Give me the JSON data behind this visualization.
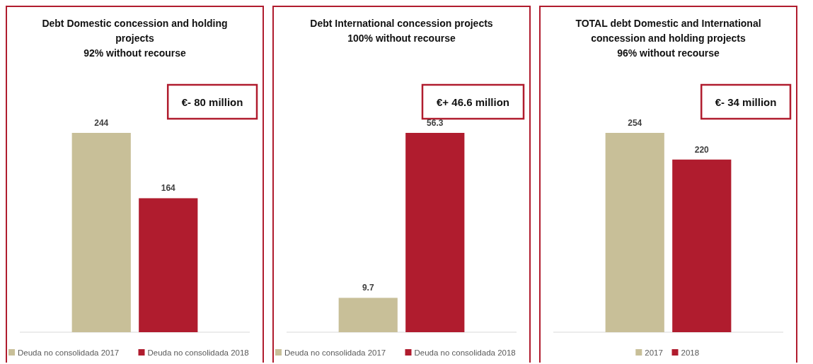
{
  "chart_data": [
    {
      "type": "bar",
      "title": "Debt Domestic concession and holding projects",
      "subtitle": "92% without recourse",
      "categories": [
        null
      ],
      "series": [
        {
          "name": "Deuda no consolidada 2017",
          "color": "#c8bf98",
          "values": [
            244
          ]
        },
        {
          "name": "Deuda no consolidada 2018",
          "color": "#b01c2e",
          "values": [
            164
          ]
        }
      ],
      "data_labels": true,
      "legend": "bottom",
      "annotations": [
        "€- 80 million"
      ]
    },
    {
      "type": "bar",
      "title": "Debt International concession projects",
      "subtitle": "100% without recourse",
      "categories": [
        null
      ],
      "series": [
        {
          "name": "Deuda no consolidada 2017",
          "color": "#c8bf98",
          "values": [
            9.7
          ]
        },
        {
          "name": "Deuda no consolidada 2018",
          "color": "#b01c2e",
          "values": [
            56.3
          ]
        }
      ],
      "data_labels": true,
      "legend": "bottom",
      "annotations": [
        "€+ 46.6 million"
      ]
    },
    {
      "type": "bar",
      "title": "TOTAL debt Domestic and International concession and holding projects",
      "subtitle": "96% without recourse",
      "categories": [
        null
      ],
      "series": [
        {
          "name": "2017",
          "color": "#c8bf98",
          "values": [
            254
          ]
        },
        {
          "name": "2018",
          "color": "#b01c2e",
          "values": [
            220
          ]
        }
      ],
      "data_labels": true,
      "legend": "bottom",
      "annotations": [
        "€- 34 million"
      ]
    }
  ]
}
